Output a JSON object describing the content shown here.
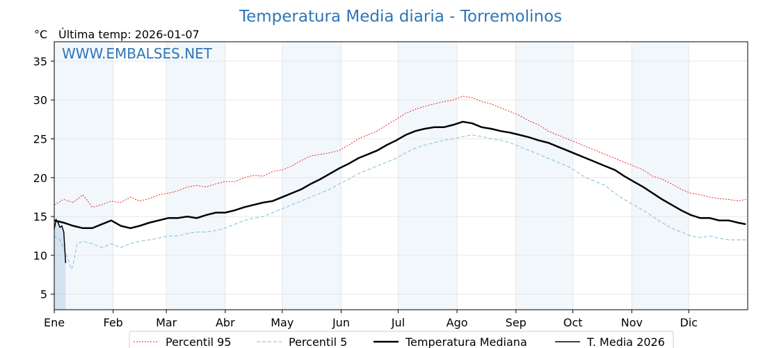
{
  "title": "Temperatura Media diaria - Torremolinos",
  "unit_label": "°C",
  "subtitle": "Última temp: 2026-01-07",
  "watermark": "WWW.EMBALSES.NET",
  "colors": {
    "title": "#2e75b6",
    "p95": "#e8231c",
    "p5": "#8ec9e0",
    "median": "#000000",
    "current": "#000000",
    "current_fill": "#2e75b6",
    "band": "#dbe8f5"
  },
  "chart_data": {
    "type": "line",
    "x_unit": "day of year",
    "ylim": [
      3,
      37.5
    ],
    "xlim": [
      0,
      365
    ],
    "yticks": [
      5,
      10,
      15,
      20,
      25,
      30,
      35
    ],
    "grid": true,
    "months": [
      {
        "label": "Ene",
        "start": 0
      },
      {
        "label": "Feb",
        "start": 31
      },
      {
        "label": "Mar",
        "start": 59
      },
      {
        "label": "Abr",
        "start": 90
      },
      {
        "label": "May",
        "start": 120
      },
      {
        "label": "Jun",
        "start": 151
      },
      {
        "label": "Jul",
        "start": 181
      },
      {
        "label": "Ago",
        "start": 212
      },
      {
        "label": "Sep",
        "start": 243
      },
      {
        "label": "Oct",
        "start": 273
      },
      {
        "label": "Nov",
        "start": 304
      },
      {
        "label": "Dic",
        "start": 334
      }
    ],
    "legend_position": "bottom-center",
    "series": [
      {
        "name": "Percentil 95",
        "key": "p95",
        "x": [
          0,
          5,
          10,
          15,
          20,
          25,
          30,
          35,
          40,
          45,
          50,
          55,
          60,
          65,
          70,
          75,
          80,
          85,
          90,
          95,
          100,
          105,
          110,
          115,
          120,
          125,
          130,
          135,
          140,
          145,
          150,
          155,
          160,
          165,
          170,
          175,
          180,
          185,
          190,
          195,
          200,
          205,
          210,
          215,
          220,
          225,
          230,
          235,
          240,
          245,
          250,
          255,
          260,
          265,
          270,
          275,
          280,
          285,
          290,
          295,
          300,
          305,
          310,
          315,
          320,
          325,
          330,
          335,
          340,
          345,
          350,
          355,
          360,
          364
        ],
        "y": [
          16.5,
          17.2,
          16.8,
          17.8,
          16.2,
          16.5,
          17.0,
          16.8,
          17.5,
          17.0,
          17.3,
          17.8,
          18.0,
          18.3,
          18.8,
          19.0,
          18.8,
          19.2,
          19.5,
          19.5,
          20.0,
          20.3,
          20.2,
          20.8,
          21.0,
          21.5,
          22.2,
          22.8,
          23.0,
          23.2,
          23.5,
          24.2,
          25.0,
          25.5,
          26.0,
          26.8,
          27.5,
          28.3,
          28.8,
          29.2,
          29.5,
          29.8,
          30.0,
          30.5,
          30.3,
          29.8,
          29.5,
          29.0,
          28.5,
          28.0,
          27.3,
          26.8,
          26.0,
          25.5,
          25.0,
          24.5,
          24.0,
          23.5,
          23.0,
          22.5,
          22.0,
          21.5,
          21.0,
          20.2,
          19.8,
          19.2,
          18.5,
          18.0,
          17.8,
          17.5,
          17.3,
          17.2,
          17.0,
          17.2
        ]
      },
      {
        "name": "Percentil 5",
        "key": "p5",
        "x": [
          0,
          3,
          5,
          8,
          9,
          10,
          12,
          15,
          20,
          25,
          30,
          35,
          40,
          45,
          50,
          55,
          60,
          65,
          70,
          75,
          80,
          85,
          90,
          95,
          100,
          105,
          110,
          115,
          120,
          125,
          130,
          135,
          140,
          145,
          150,
          155,
          160,
          165,
          170,
          175,
          180,
          185,
          190,
          195,
          200,
          205,
          210,
          215,
          220,
          225,
          230,
          235,
          240,
          245,
          250,
          255,
          260,
          265,
          270,
          275,
          280,
          285,
          290,
          295,
          300,
          305,
          310,
          315,
          320,
          325,
          330,
          335,
          340,
          345,
          350,
          355,
          360,
          364
        ],
        "y": [
          12.5,
          12.0,
          11.0,
          9.0,
          8.2,
          8.8,
          11.5,
          11.8,
          11.5,
          11.0,
          11.5,
          11.0,
          11.5,
          11.8,
          12.0,
          12.2,
          12.5,
          12.5,
          12.8,
          13.0,
          13.0,
          13.2,
          13.5,
          14.0,
          14.5,
          14.8,
          15.0,
          15.5,
          16.0,
          16.5,
          17.0,
          17.5,
          18.0,
          18.5,
          19.2,
          19.8,
          20.5,
          21.0,
          21.5,
          22.0,
          22.5,
          23.2,
          23.8,
          24.2,
          24.5,
          24.8,
          25.0,
          25.3,
          25.5,
          25.3,
          25.0,
          24.8,
          24.5,
          24.0,
          23.5,
          23.0,
          22.5,
          22.0,
          21.5,
          20.8,
          20.0,
          19.5,
          19.0,
          18.0,
          17.2,
          16.5,
          15.8,
          15.0,
          14.2,
          13.5,
          13.0,
          12.5,
          12.3,
          12.5,
          12.2,
          12.0,
          12.0,
          12.0
        ]
      },
      {
        "name": "Temperatura Mediana",
        "key": "median",
        "x": [
          0,
          5,
          10,
          15,
          20,
          25,
          30,
          35,
          40,
          45,
          50,
          55,
          60,
          65,
          70,
          75,
          80,
          85,
          90,
          95,
          100,
          105,
          110,
          115,
          120,
          125,
          130,
          135,
          140,
          145,
          150,
          155,
          160,
          165,
          170,
          175,
          180,
          185,
          190,
          195,
          200,
          205,
          210,
          215,
          220,
          225,
          230,
          235,
          240,
          245,
          250,
          255,
          260,
          265,
          270,
          275,
          280,
          285,
          290,
          295,
          300,
          305,
          310,
          315,
          320,
          325,
          330,
          335,
          340,
          345,
          350,
          355,
          360,
          364
        ],
        "y": [
          14.5,
          14.2,
          13.8,
          13.5,
          13.5,
          14.0,
          14.5,
          13.8,
          13.5,
          13.8,
          14.2,
          14.5,
          14.8,
          14.8,
          15.0,
          14.8,
          15.2,
          15.5,
          15.5,
          15.8,
          16.2,
          16.5,
          16.8,
          17.0,
          17.5,
          18.0,
          18.5,
          19.2,
          19.8,
          20.5,
          21.2,
          21.8,
          22.5,
          23.0,
          23.5,
          24.2,
          24.8,
          25.5,
          26.0,
          26.3,
          26.5,
          26.5,
          26.8,
          27.2,
          27.0,
          26.5,
          26.3,
          26.0,
          25.8,
          25.5,
          25.2,
          24.8,
          24.5,
          24.0,
          23.5,
          23.0,
          22.5,
          22.0,
          21.5,
          21.0,
          20.2,
          19.5,
          18.8,
          18.0,
          17.2,
          16.5,
          15.8,
          15.2,
          14.8,
          14.8,
          14.5,
          14.5,
          14.2,
          14.0
        ]
      },
      {
        "name": "T. Media 2026",
        "key": "current",
        "x": [
          0,
          1,
          2,
          3,
          4,
          5,
          6
        ],
        "y": [
          13.4,
          14.6,
          14.2,
          13.6,
          13.8,
          13.0,
          9.0
        ]
      }
    ]
  },
  "legend": {
    "items": [
      {
        "label": "Percentil 95",
        "key": "p95"
      },
      {
        "label": "Percentil 5",
        "key": "p5"
      },
      {
        "label": "Temperatura Mediana",
        "key": "median"
      },
      {
        "label": "T. Media 2026",
        "key": "current"
      }
    ]
  }
}
